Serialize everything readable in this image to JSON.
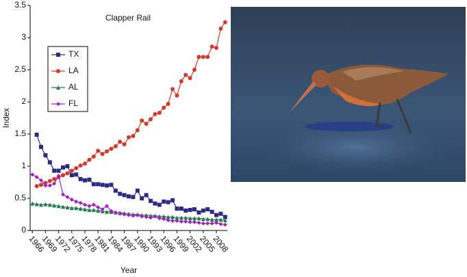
{
  "chart_data": {
    "type": "line",
    "title": "Clapper Rail",
    "xlabel": "Year",
    "ylabel": "Index",
    "x": [
      1966,
      1967,
      1968,
      1969,
      1970,
      1971,
      1972,
      1973,
      1974,
      1975,
      1976,
      1977,
      1978,
      1979,
      1980,
      1981,
      1982,
      1983,
      1984,
      1985,
      1986,
      1987,
      1988,
      1989,
      1990,
      1991,
      1992,
      1993,
      1994,
      1995,
      1996,
      1997,
      1998,
      1999,
      2000,
      2001,
      2002,
      2003,
      2004,
      2005,
      2006,
      2007,
      2008,
      2009,
      2010
    ],
    "xlim": [
      1965.5,
      2010.5
    ],
    "xticks": [
      1966,
      1969,
      1972,
      1975,
      1978,
      1981,
      1984,
      1987,
      1990,
      1993,
      1996,
      1999,
      2002,
      2005,
      2008
    ],
    "ylim": [
      0,
      3.5
    ],
    "yticks": [
      0,
      0.5,
      1,
      1.5,
      2,
      2.5,
      3,
      3.5
    ],
    "legend": "upper left",
    "series": [
      {
        "name": "TX",
        "color": "#2b2b85",
        "marker": "square",
        "values": [
          null,
          1.49,
          1.3,
          1.17,
          1.06,
          0.93,
          0.93,
          0.98,
          1.0,
          0.86,
          0.87,
          0.8,
          0.78,
          0.79,
          0.72,
          0.72,
          0.71,
          0.7,
          0.71,
          0.62,
          0.57,
          0.55,
          0.53,
          0.52,
          0.62,
          0.5,
          0.55,
          0.46,
          0.42,
          0.4,
          0.45,
          0.44,
          0.47,
          0.34,
          0.34,
          0.31,
          0.32,
          0.33,
          0.28,
          0.31,
          0.33,
          0.29,
          0.24,
          0.26,
          0.21
        ]
      },
      {
        "name": "LA",
        "color": "#d0392b",
        "marker": "circle",
        "values": [
          null,
          0.69,
          0.71,
          0.74,
          0.77,
          0.8,
          0.83,
          0.86,
          0.89,
          0.93,
          0.97,
          1.01,
          1.04,
          1.1,
          1.15,
          1.24,
          1.19,
          1.23,
          1.27,
          1.31,
          1.38,
          1.34,
          1.45,
          1.47,
          1.56,
          1.71,
          1.66,
          1.73,
          1.81,
          1.83,
          1.91,
          1.97,
          2.2,
          2.1,
          2.32,
          2.42,
          2.37,
          2.5,
          2.7,
          2.7,
          2.7,
          2.86,
          2.84,
          3.14,
          3.24
        ]
      },
      {
        "name": "AL",
        "color": "#237a4b",
        "marker": "triangle",
        "values": [
          0.42,
          0.41,
          0.4,
          0.41,
          0.4,
          0.39,
          0.38,
          0.37,
          0.36,
          0.35,
          0.35,
          0.34,
          0.33,
          0.32,
          0.32,
          0.31,
          0.3,
          0.29,
          0.29,
          0.28,
          0.27,
          0.27,
          0.26,
          0.25,
          0.25,
          0.24,
          0.24,
          0.23,
          0.23,
          0.22,
          0.22,
          0.21,
          0.21,
          0.2,
          0.2,
          0.2,
          0.19,
          0.19,
          0.19,
          0.18,
          0.18,
          0.17,
          0.17,
          0.17,
          0.16
        ]
      },
      {
        "name": "FL",
        "color": "#a020c0",
        "marker": "diamond",
        "values": [
          0.87,
          0.83,
          0.78,
          0.7,
          0.7,
          0.73,
          0.85,
          0.56,
          0.52,
          0.48,
          0.45,
          0.43,
          0.4,
          0.38,
          0.4,
          0.36,
          0.33,
          0.38,
          0.3,
          0.28,
          0.27,
          0.25,
          0.24,
          0.23,
          0.24,
          0.22,
          0.21,
          0.2,
          0.22,
          0.19,
          0.18,
          0.16,
          0.15,
          0.15,
          0.14,
          0.14,
          0.13,
          0.13,
          0.12,
          0.11,
          0.11,
          0.11,
          0.12,
          0.1,
          0.09
        ]
      }
    ]
  }
}
